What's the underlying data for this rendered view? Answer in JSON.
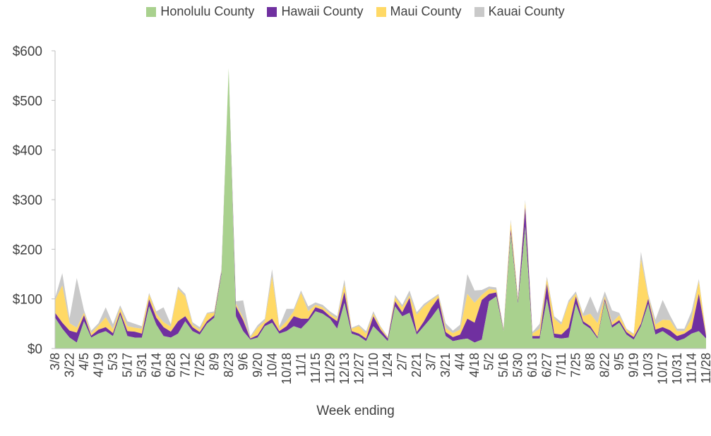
{
  "chart_data": {
    "type": "area",
    "stacked": true,
    "xlabel": "Week ending",
    "ylabel": "",
    "ylim": [
      0,
      600
    ],
    "yticks": [
      "$0",
      "$100",
      "$200",
      "$300",
      "$400",
      "$500",
      "$600"
    ],
    "grid": false,
    "legend_position": "top",
    "categories": [
      "3/8",
      "3/15",
      "3/22",
      "3/29",
      "4/5",
      "4/12",
      "4/19",
      "4/26",
      "5/3",
      "5/10",
      "5/17",
      "5/24",
      "5/31",
      "6/7",
      "6/14",
      "6/21",
      "6/28",
      "7/5",
      "7/12",
      "7/19",
      "7/26",
      "8/2",
      "8/9",
      "8/16",
      "8/23",
      "8/30",
      "9/6",
      "9/13",
      "9/20",
      "9/27",
      "10/4",
      "10/11",
      "10/18",
      "10/25",
      "11/1",
      "11/8",
      "11/15",
      "11/22",
      "11/29",
      "12/6",
      "12/13",
      "12/20",
      "12/27",
      "1/3",
      "1/10",
      "1/17",
      "1/24",
      "1/31",
      "2/7",
      "2/14",
      "2/21",
      "2/28",
      "3/7",
      "3/14",
      "3/21",
      "3/28",
      "4/4",
      "4/11",
      "4/18",
      "4/25",
      "5/2",
      "5/9",
      "5/16",
      "5/23",
      "5/30",
      "6/6",
      "6/13",
      "6/20",
      "6/27",
      "7/4",
      "7/11",
      "7/18",
      "7/25",
      "8/1",
      "8/8",
      "8/15",
      "8/22",
      "8/29",
      "9/5",
      "9/12",
      "9/19",
      "9/26",
      "10/3",
      "10/10",
      "10/17",
      "10/24",
      "10/31",
      "11/7",
      "11/14",
      "11/21",
      "11/28"
    ],
    "x_tick_labels": [
      "3/8",
      "3/22",
      "4/5",
      "4/19",
      "5/3",
      "5/17",
      "5/31",
      "6/14",
      "6/28",
      "7/12",
      "7/26",
      "8/9",
      "8/23",
      "9/6",
      "9/20",
      "10/4",
      "10/18",
      "11/1",
      "11/15",
      "11/29",
      "12/13",
      "12/27",
      "1/10",
      "1/24",
      "2/7",
      "2/21",
      "3/7",
      "3/21",
      "4/4",
      "4/18",
      "5/2",
      "5/16",
      "5/30",
      "6/13",
      "6/27",
      "7/11",
      "7/25",
      "8/8",
      "8/22",
      "9/5",
      "9/19",
      "10/3",
      "10/17",
      "10/31",
      "11/14",
      "11/28"
    ],
    "series": [
      {
        "name": "Honolulu County",
        "color": "#a9d18e",
        "values": [
          62,
          40,
          22,
          12,
          55,
          22,
          30,
          35,
          25,
          68,
          25,
          22,
          22,
          85,
          48,
          25,
          22,
          30,
          55,
          35,
          28,
          50,
          62,
          150,
          565,
          65,
          35,
          18,
          22,
          45,
          52,
          30,
          35,
          45,
          40,
          55,
          75,
          70,
          60,
          40,
          92,
          30,
          25,
          15,
          45,
          30,
          15,
          85,
          65,
          72,
          28,
          45,
          62,
          82,
          25,
          15,
          18,
          20,
          12,
          18,
          95,
          105,
          35,
          230,
          90,
          245,
          20,
          20,
          100,
          22,
          20,
          22,
          90,
          50,
          40,
          20,
          95,
          42,
          52,
          28,
          18,
          45,
          90,
          28,
          35,
          25,
          15,
          20,
          30,
          35,
          20
        ]
      },
      {
        "name": "Hawaii County",
        "color": "#7030a0",
        "values": [
          10,
          12,
          14,
          20,
          12,
          4,
          8,
          8,
          6,
          6,
          10,
          12,
          8,
          14,
          14,
          18,
          12,
          25,
          10,
          8,
          5,
          5,
          5,
          5,
          0,
          20,
          22,
          2,
          5,
          5,
          8,
          5,
          10,
          20,
          20,
          5,
          8,
          8,
          5,
          15,
          22,
          5,
          5,
          5,
          20,
          8,
          5,
          10,
          8,
          30,
          5,
          10,
          20,
          20,
          8,
          8,
          10,
          40,
          40,
          80,
          15,
          8,
          2,
          10,
          5,
          40,
          5,
          5,
          30,
          8,
          8,
          20,
          15,
          5,
          5,
          3,
          5,
          5,
          5,
          5,
          5,
          5,
          10,
          10,
          8,
          12,
          10,
          10,
          10,
          75,
          5
        ]
      },
      {
        "name": "Maui County",
        "color": "#ffd966",
        "values": [
          25,
          75,
          15,
          10,
          5,
          5,
          8,
          20,
          8,
          8,
          10,
          8,
          10,
          10,
          8,
          10,
          10,
          65,
          40,
          5,
          5,
          15,
          5,
          2,
          0,
          5,
          5,
          2,
          15,
          5,
          85,
          5,
          10,
          10,
          52,
          15,
          5,
          5,
          5,
          5,
          15,
          5,
          15,
          10,
          5,
          5,
          2,
          8,
          10,
          5,
          35,
          30,
          15,
          5,
          8,
          8,
          10,
          50,
          40,
          10,
          10,
          5,
          2,
          15,
          5,
          10,
          5,
          15,
          10,
          30,
          20,
          50,
          5,
          10,
          25,
          28,
          5,
          5,
          10,
          5,
          5,
          130,
          5,
          10,
          15,
          20,
          10,
          5,
          20,
          25,
          5
        ]
      },
      {
        "name": "Kauai County",
        "color": "#c9c9c9",
        "values": [
          5,
          25,
          10,
          100,
          5,
          5,
          5,
          20,
          10,
          5,
          10,
          8,
          5,
          3,
          5,
          30,
          5,
          5,
          5,
          5,
          5,
          2,
          3,
          3,
          0,
          5,
          35,
          3,
          5,
          5,
          15,
          5,
          25,
          5,
          5,
          10,
          5,
          5,
          5,
          5,
          10,
          2,
          3,
          5,
          5,
          2,
          2,
          5,
          5,
          10,
          5,
          5,
          3,
          3,
          10,
          5,
          10,
          40,
          25,
          10,
          5,
          5,
          2,
          5,
          2,
          5,
          3,
          10,
          5,
          5,
          5,
          5,
          5,
          5,
          35,
          20,
          10,
          25,
          5,
          2,
          2,
          15,
          5,
          10,
          40,
          10,
          5,
          5,
          15,
          5,
          2
        ]
      }
    ]
  }
}
